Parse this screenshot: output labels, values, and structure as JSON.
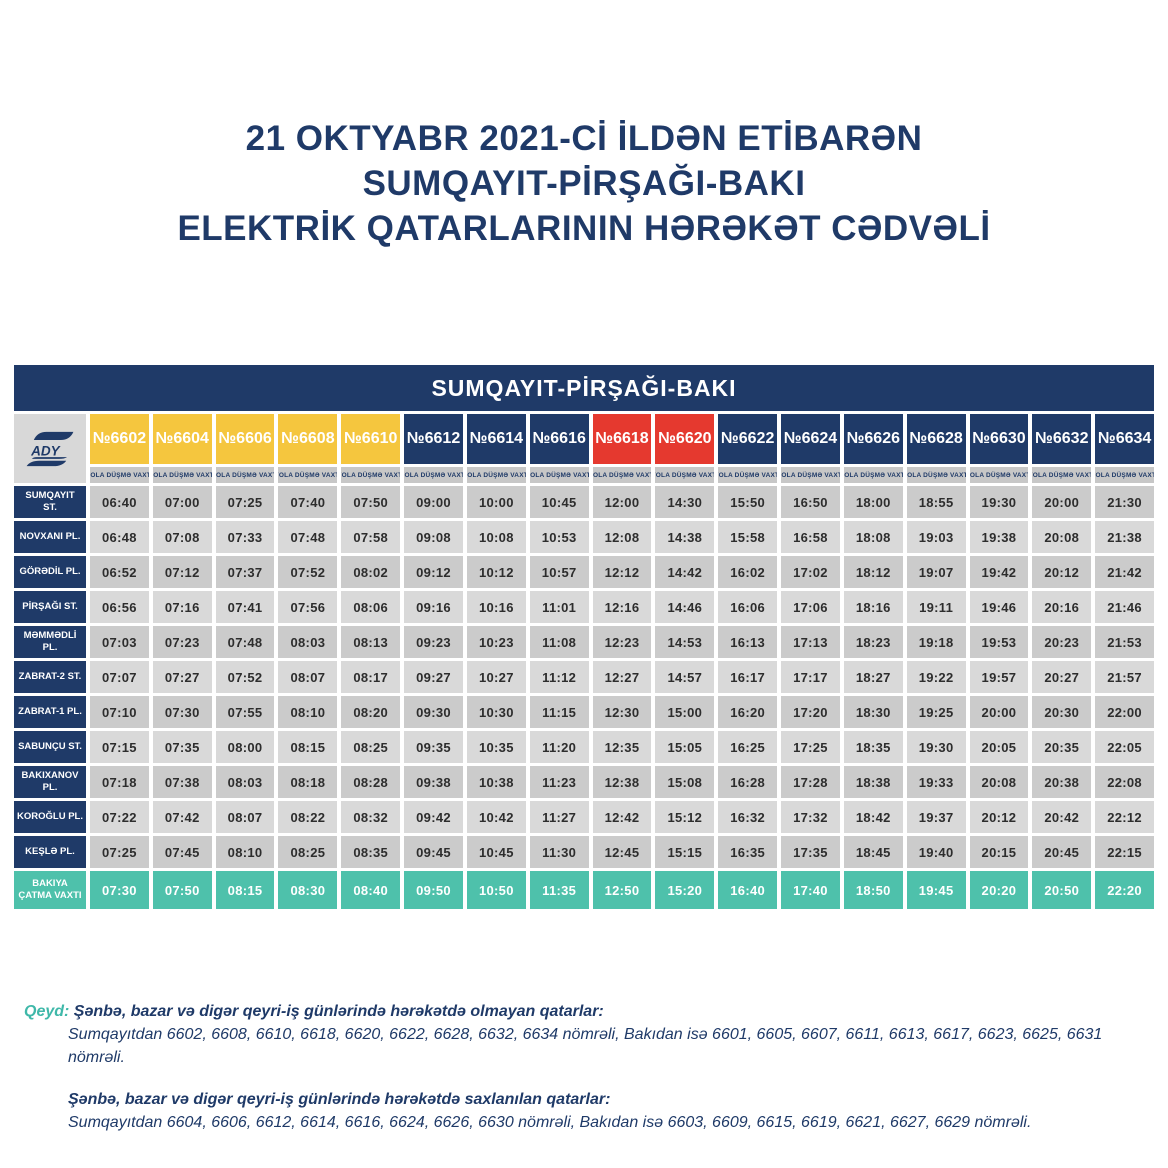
{
  "title": {
    "line1": "21 OKTYABR 2021-Cİ İLDƏN ETİBARƏN",
    "line2": "SUMQAYIT-PİRŞAĞI-BAKI",
    "line3": "ELEKTRİK QATARLARININ HƏRƏKƏT CƏDVƏLİ"
  },
  "banner": "SUMQAYIT-PİRŞAĞI-BAKI",
  "logo": {
    "text": "ADY"
  },
  "columns": {
    "subheader_label": "YOLA DÜŞMƏ VAXTI",
    "trains": [
      {
        "number": "№6602",
        "color_key": "yellow"
      },
      {
        "number": "№6604",
        "color_key": "yellow"
      },
      {
        "number": "№6606",
        "color_key": "yellow"
      },
      {
        "number": "№6608",
        "color_key": "yellow"
      },
      {
        "number": "№6610",
        "color_key": "yellow"
      },
      {
        "number": "№6612",
        "color_key": "navy"
      },
      {
        "number": "№6614",
        "color_key": "navy"
      },
      {
        "number": "№6616",
        "color_key": "navy"
      },
      {
        "number": "№6618",
        "color_key": "red"
      },
      {
        "number": "№6620",
        "color_key": "red"
      },
      {
        "number": "№6622",
        "color_key": "navy"
      },
      {
        "number": "№6624",
        "color_key": "navy"
      },
      {
        "number": "№6626",
        "color_key": "navy"
      },
      {
        "number": "№6628",
        "color_key": "navy"
      },
      {
        "number": "№6630",
        "color_key": "navy"
      },
      {
        "number": "№6632",
        "color_key": "navy"
      },
      {
        "number": "№6634",
        "color_key": "navy"
      }
    ]
  },
  "rows": [
    {
      "station_lines": [
        "SUMQAYIT",
        "ST."
      ],
      "times": [
        "06:40",
        "07:00",
        "07:25",
        "07:40",
        "07:50",
        "09:00",
        "10:00",
        "10:45",
        "12:00",
        "14:30",
        "15:50",
        "16:50",
        "18:00",
        "18:55",
        "19:30",
        "20:00",
        "21:30"
      ]
    },
    {
      "station_lines": [
        "NOVXANI PL."
      ],
      "times": [
        "06:48",
        "07:08",
        "07:33",
        "07:48",
        "07:58",
        "09:08",
        "10:08",
        "10:53",
        "12:08",
        "14:38",
        "15:58",
        "16:58",
        "18:08",
        "19:03",
        "19:38",
        "20:08",
        "21:38"
      ]
    },
    {
      "station_lines": [
        "GÖRƏDİL PL."
      ],
      "times": [
        "06:52",
        "07:12",
        "07:37",
        "07:52",
        "08:02",
        "09:12",
        "10:12",
        "10:57",
        "12:12",
        "14:42",
        "16:02",
        "17:02",
        "18:12",
        "19:07",
        "19:42",
        "20:12",
        "21:42"
      ]
    },
    {
      "station_lines": [
        "PİRŞAĞI ST."
      ],
      "times": [
        "06:56",
        "07:16",
        "07:41",
        "07:56",
        "08:06",
        "09:16",
        "10:16",
        "11:01",
        "12:16",
        "14:46",
        "16:06",
        "17:06",
        "18:16",
        "19:11",
        "19:46",
        "20:16",
        "21:46"
      ]
    },
    {
      "station_lines": [
        "MƏMMƏDLİ",
        "PL."
      ],
      "times": [
        "07:03",
        "07:23",
        "07:48",
        "08:03",
        "08:13",
        "09:23",
        "10:23",
        "11:08",
        "12:23",
        "14:53",
        "16:13",
        "17:13",
        "18:23",
        "19:18",
        "19:53",
        "20:23",
        "21:53"
      ]
    },
    {
      "station_lines": [
        "ZABRAT-2 ST."
      ],
      "times": [
        "07:07",
        "07:27",
        "07:52",
        "08:07",
        "08:17",
        "09:27",
        "10:27",
        "11:12",
        "12:27",
        "14:57",
        "16:17",
        "17:17",
        "18:27",
        "19:22",
        "19:57",
        "20:27",
        "21:57"
      ]
    },
    {
      "station_lines": [
        "ZABRAT-1 PL."
      ],
      "times": [
        "07:10",
        "07:30",
        "07:55",
        "08:10",
        "08:20",
        "09:30",
        "10:30",
        "11:15",
        "12:30",
        "15:00",
        "16:20",
        "17:20",
        "18:30",
        "19:25",
        "20:00",
        "20:30",
        "22:00"
      ]
    },
    {
      "station_lines": [
        "SABUNÇU ST."
      ],
      "times": [
        "07:15",
        "07:35",
        "08:00",
        "08:15",
        "08:25",
        "09:35",
        "10:35",
        "11:20",
        "12:35",
        "15:05",
        "16:25",
        "17:25",
        "18:35",
        "19:30",
        "20:05",
        "20:35",
        "22:05"
      ]
    },
    {
      "station_lines": [
        "BAKIXANOV",
        "PL."
      ],
      "times": [
        "07:18",
        "07:38",
        "08:03",
        "08:18",
        "08:28",
        "09:38",
        "10:38",
        "11:23",
        "12:38",
        "15:08",
        "16:28",
        "17:28",
        "18:38",
        "19:33",
        "20:08",
        "20:38",
        "22:08"
      ]
    },
    {
      "station_lines": [
        "KOROĞLU PL."
      ],
      "times": [
        "07:22",
        "07:42",
        "08:07",
        "08:22",
        "08:32",
        "09:42",
        "10:42",
        "11:27",
        "12:42",
        "15:12",
        "16:32",
        "17:32",
        "18:42",
        "19:37",
        "20:12",
        "20:42",
        "22:12"
      ]
    },
    {
      "station_lines": [
        "KEŞLƏ PL."
      ],
      "times": [
        "07:25",
        "07:45",
        "08:10",
        "08:25",
        "08:35",
        "09:45",
        "10:45",
        "11:30",
        "12:45",
        "15:15",
        "16:35",
        "17:35",
        "18:45",
        "19:40",
        "20:15",
        "20:45",
        "22:15"
      ]
    }
  ],
  "arrival_row": {
    "station_lines": [
      "BAKIYA",
      "ÇATMA VAXTI"
    ],
    "times": [
      "07:30",
      "07:50",
      "08:15",
      "08:30",
      "08:40",
      "09:50",
      "10:50",
      "11:35",
      "12:50",
      "15:20",
      "16:40",
      "17:40",
      "18:50",
      "19:45",
      "20:20",
      "20:50",
      "22:20"
    ]
  },
  "notes": {
    "qeyd_label": "Qeyd:",
    "note1_heading": "Şənbə, bazar və digər qeyri-iş günlərində hərəkətdə olmayan qatarlar:",
    "note1_body": "Sumqayıtdan 6602, 6608, 6610, 6618, 6620, 6622, 6628, 6632, 6634 nömrəli, Bakıdan isə  6601, 6605, 6607, 6611, 6613, 6617, 6623, 6625, 6631 nömrəli.",
    "note2_heading": "Şənbə, bazar və digər qeyri-iş günlərində hərəkətdə saxlanılan qatarlar:",
    "note2_body": "Sumqayıtdan 6604, 6606, 6612, 6614, 6616, 6624, 6626, 6630 nömrəli, Bakıdan isə 6603, 6609, 6615, 6619, 6621, 6627, 6629 nömrəli."
  },
  "colors": {
    "navy": "#1F3A68",
    "yellow": "#F5C63E",
    "red": "#E5392F",
    "teal": "#4EC1AB",
    "row_dark": "#CBCBCB",
    "row_light": "#D9D9D9",
    "subheader_bg": "#C7C7C7",
    "logo_bg": "#D8D8D8",
    "time_text": "#2D2D2D",
    "note_teal": "#3FB8A9"
  }
}
